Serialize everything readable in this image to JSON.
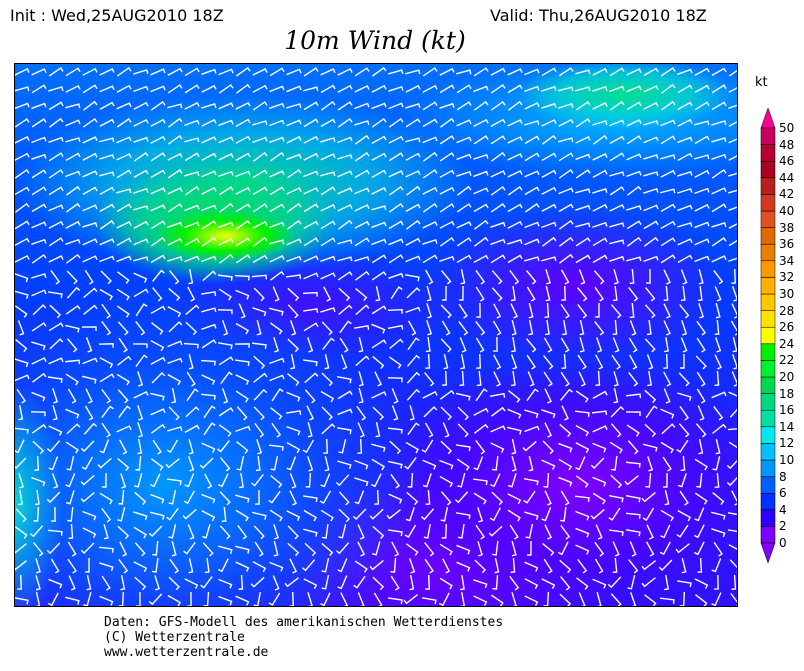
{
  "header": {
    "init": "Init : Wed,25AUG2010 18Z",
    "valid": "Valid: Thu,26AUG2010 18Z",
    "title": "10m Wind (kt)"
  },
  "legend": {
    "unit": "kt",
    "labels": [
      "0",
      "2",
      "4",
      "6",
      "8",
      "10",
      "12",
      "14",
      "16",
      "18",
      "20",
      "22",
      "24",
      "26",
      "28",
      "30",
      "32",
      "34",
      "36",
      "38",
      "40",
      "42",
      "44",
      "46",
      "48",
      "50"
    ],
    "colors": [
      "#8000ff",
      "#3000ff",
      "#0030ff",
      "#0060ff",
      "#0098ff",
      "#00c0ff",
      "#00e8f0",
      "#00e0a0",
      "#00d880",
      "#00d850",
      "#00f030",
      "#00f000",
      "#ffff00",
      "#ffe000",
      "#ffc800",
      "#ffb000",
      "#ff9800",
      "#e88000",
      "#e06800",
      "#e05020",
      "#d03820",
      "#b82020",
      "#a80020",
      "#b80030",
      "#c80060"
    ],
    "over_color": "#ff0090",
    "under_color": "#8000ff"
  },
  "footer": {
    "line1": "Daten: GFS-Modell des amerikanischen Wetterdienstes",
    "line2": "(C) Wetterzentrale",
    "line3": "www.wetterzentrale.de"
  }
}
